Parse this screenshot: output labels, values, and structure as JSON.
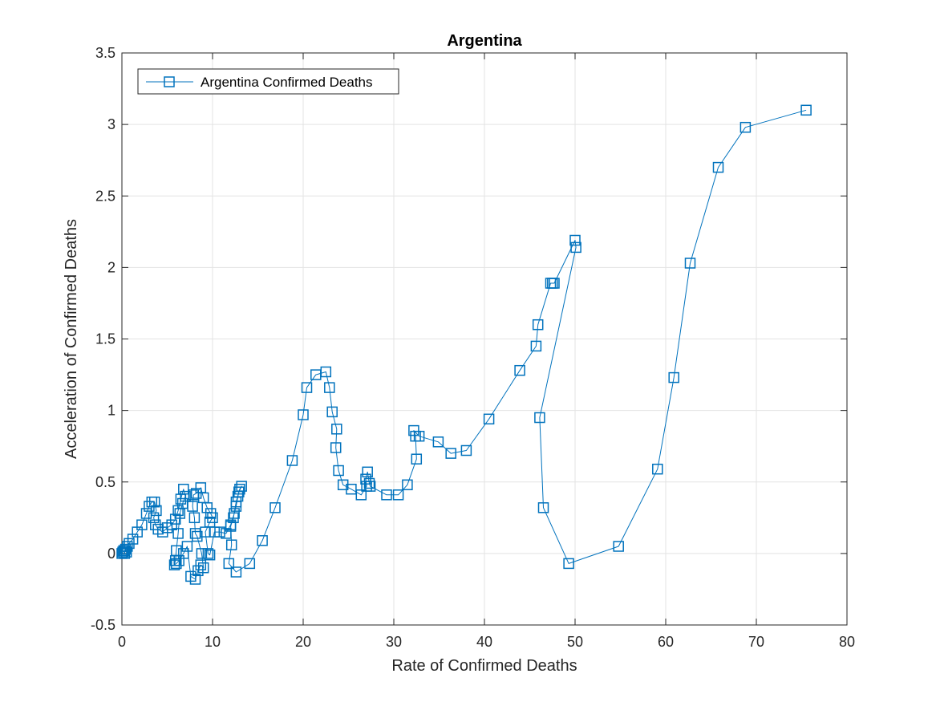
{
  "chart_data": {
    "type": "line",
    "title": "Argentina",
    "xlabel": "Rate of Confirmed Deaths",
    "ylabel": "Acceleration of Confirmed Deaths",
    "xlim": [
      0,
      80
    ],
    "ylim": [
      -0.5,
      3.5
    ],
    "xticks": [
      0,
      10,
      20,
      30,
      40,
      50,
      60,
      70,
      80
    ],
    "yticks": [
      -0.5,
      0,
      0.5,
      1,
      1.5,
      2,
      2.5,
      3,
      3.5
    ],
    "xtick_labels": [
      "0",
      "10",
      "20",
      "30",
      "40",
      "50",
      "60",
      "70",
      "80"
    ],
    "ytick_labels": [
      "-0.5",
      "0",
      "0.5",
      "1",
      "1.5",
      "2",
      "2.5",
      "3",
      "3.5"
    ],
    "grid": true,
    "legend_position": "top-left",
    "marker": "square",
    "series": [
      {
        "name": "Argentina Confirmed Deaths",
        "color": "#0072BD",
        "points": [
          [
            0.0,
            0.0
          ],
          [
            0.1,
            0.01
          ],
          [
            0.2,
            0.02
          ],
          [
            0.3,
            0.0
          ],
          [
            0.4,
            0.03
          ],
          [
            0.5,
            0.01
          ],
          [
            0.3,
            0.02
          ],
          [
            0.6,
            0.05
          ],
          [
            0.8,
            0.07
          ],
          [
            1.2,
            0.1
          ],
          [
            1.7,
            0.15
          ],
          [
            2.2,
            0.2
          ],
          [
            2.7,
            0.28
          ],
          [
            3.0,
            0.33
          ],
          [
            3.3,
            0.36
          ],
          [
            3.6,
            0.36
          ],
          [
            3.8,
            0.3
          ],
          [
            3.5,
            0.25
          ],
          [
            3.7,
            0.2
          ],
          [
            4.0,
            0.17
          ],
          [
            4.5,
            0.15
          ],
          [
            5.0,
            0.18
          ],
          [
            5.5,
            0.2
          ],
          [
            5.9,
            0.24
          ],
          [
            6.2,
            0.3
          ],
          [
            6.5,
            0.38
          ],
          [
            6.8,
            0.45
          ],
          [
            7.0,
            0.4
          ],
          [
            6.7,
            0.35
          ],
          [
            6.4,
            0.28
          ],
          [
            6.2,
            0.14
          ],
          [
            6.0,
            0.02
          ],
          [
            5.9,
            -0.05
          ],
          [
            5.8,
            -0.08
          ],
          [
            6.0,
            -0.07
          ],
          [
            6.3,
            -0.05
          ],
          [
            6.8,
            0.0
          ],
          [
            7.2,
            0.05
          ],
          [
            7.6,
            -0.16
          ],
          [
            8.1,
            -0.18
          ],
          [
            8.4,
            -0.12
          ],
          [
            8.7,
            -0.08
          ],
          [
            9.0,
            -0.1
          ],
          [
            8.8,
            0.0
          ],
          [
            8.3,
            0.12
          ],
          [
            8.1,
            0.14
          ],
          [
            8.0,
            0.25
          ],
          [
            7.8,
            0.33
          ],
          [
            7.9,
            0.41
          ],
          [
            8.2,
            0.42
          ],
          [
            8.7,
            0.46
          ],
          [
            9.0,
            0.39
          ],
          [
            9.4,
            0.32
          ],
          [
            9.8,
            0.28
          ],
          [
            10.0,
            0.25
          ],
          [
            9.7,
            0.22
          ],
          [
            9.2,
            0.15
          ],
          [
            9.5,
            0.0
          ],
          [
            9.7,
            -0.01
          ],
          [
            10.2,
            0.15
          ],
          [
            10.8,
            0.15
          ],
          [
            11.5,
            0.14
          ],
          [
            12.0,
            0.2
          ],
          [
            12.4,
            0.28
          ],
          [
            12.6,
            0.33
          ],
          [
            12.8,
            0.4
          ],
          [
            13.0,
            0.45
          ],
          [
            13.2,
            0.47
          ],
          [
            12.9,
            0.43
          ],
          [
            12.6,
            0.36
          ],
          [
            12.3,
            0.25
          ],
          [
            12.0,
            0.19
          ],
          [
            12.1,
            0.06
          ],
          [
            11.8,
            -0.07
          ],
          [
            12.6,
            -0.13
          ],
          [
            14.1,
            -0.07
          ],
          [
            15.5,
            0.09
          ],
          [
            16.9,
            0.32
          ],
          [
            18.8,
            0.65
          ],
          [
            20.0,
            0.97
          ],
          [
            20.4,
            1.16
          ],
          [
            21.4,
            1.25
          ],
          [
            22.5,
            1.27
          ],
          [
            22.9,
            1.16
          ],
          [
            23.2,
            0.99
          ],
          [
            23.7,
            0.87
          ],
          [
            23.6,
            0.74
          ],
          [
            23.9,
            0.58
          ],
          [
            24.4,
            0.48
          ],
          [
            25.3,
            0.45
          ],
          [
            26.4,
            0.41
          ],
          [
            27.0,
            0.47
          ],
          [
            26.9,
            0.52
          ],
          [
            27.1,
            0.57
          ],
          [
            27.3,
            0.49
          ],
          [
            27.4,
            0.47
          ],
          [
            29.2,
            0.41
          ],
          [
            30.5,
            0.41
          ],
          [
            31.5,
            0.48
          ],
          [
            32.5,
            0.66
          ],
          [
            32.4,
            0.82
          ],
          [
            32.2,
            0.86
          ],
          [
            32.8,
            0.82
          ],
          [
            34.9,
            0.78
          ],
          [
            36.3,
            0.7
          ],
          [
            38.0,
            0.72
          ],
          [
            40.5,
            0.94
          ],
          [
            43.9,
            1.28
          ],
          [
            45.7,
            1.45
          ],
          [
            45.9,
            1.6
          ],
          [
            47.3,
            1.89
          ],
          [
            47.5,
            1.89
          ],
          [
            47.7,
            1.89
          ],
          [
            50.0,
            2.19
          ],
          [
            50.1,
            2.14
          ],
          [
            46.1,
            0.95
          ],
          [
            46.5,
            0.32
          ],
          [
            49.3,
            -0.07
          ],
          [
            54.8,
            0.05
          ],
          [
            59.1,
            0.59
          ],
          [
            60.9,
            1.23
          ],
          [
            62.7,
            2.03
          ],
          [
            65.8,
            2.7
          ],
          [
            68.8,
            2.98
          ],
          [
            75.5,
            3.1
          ]
        ]
      }
    ]
  }
}
